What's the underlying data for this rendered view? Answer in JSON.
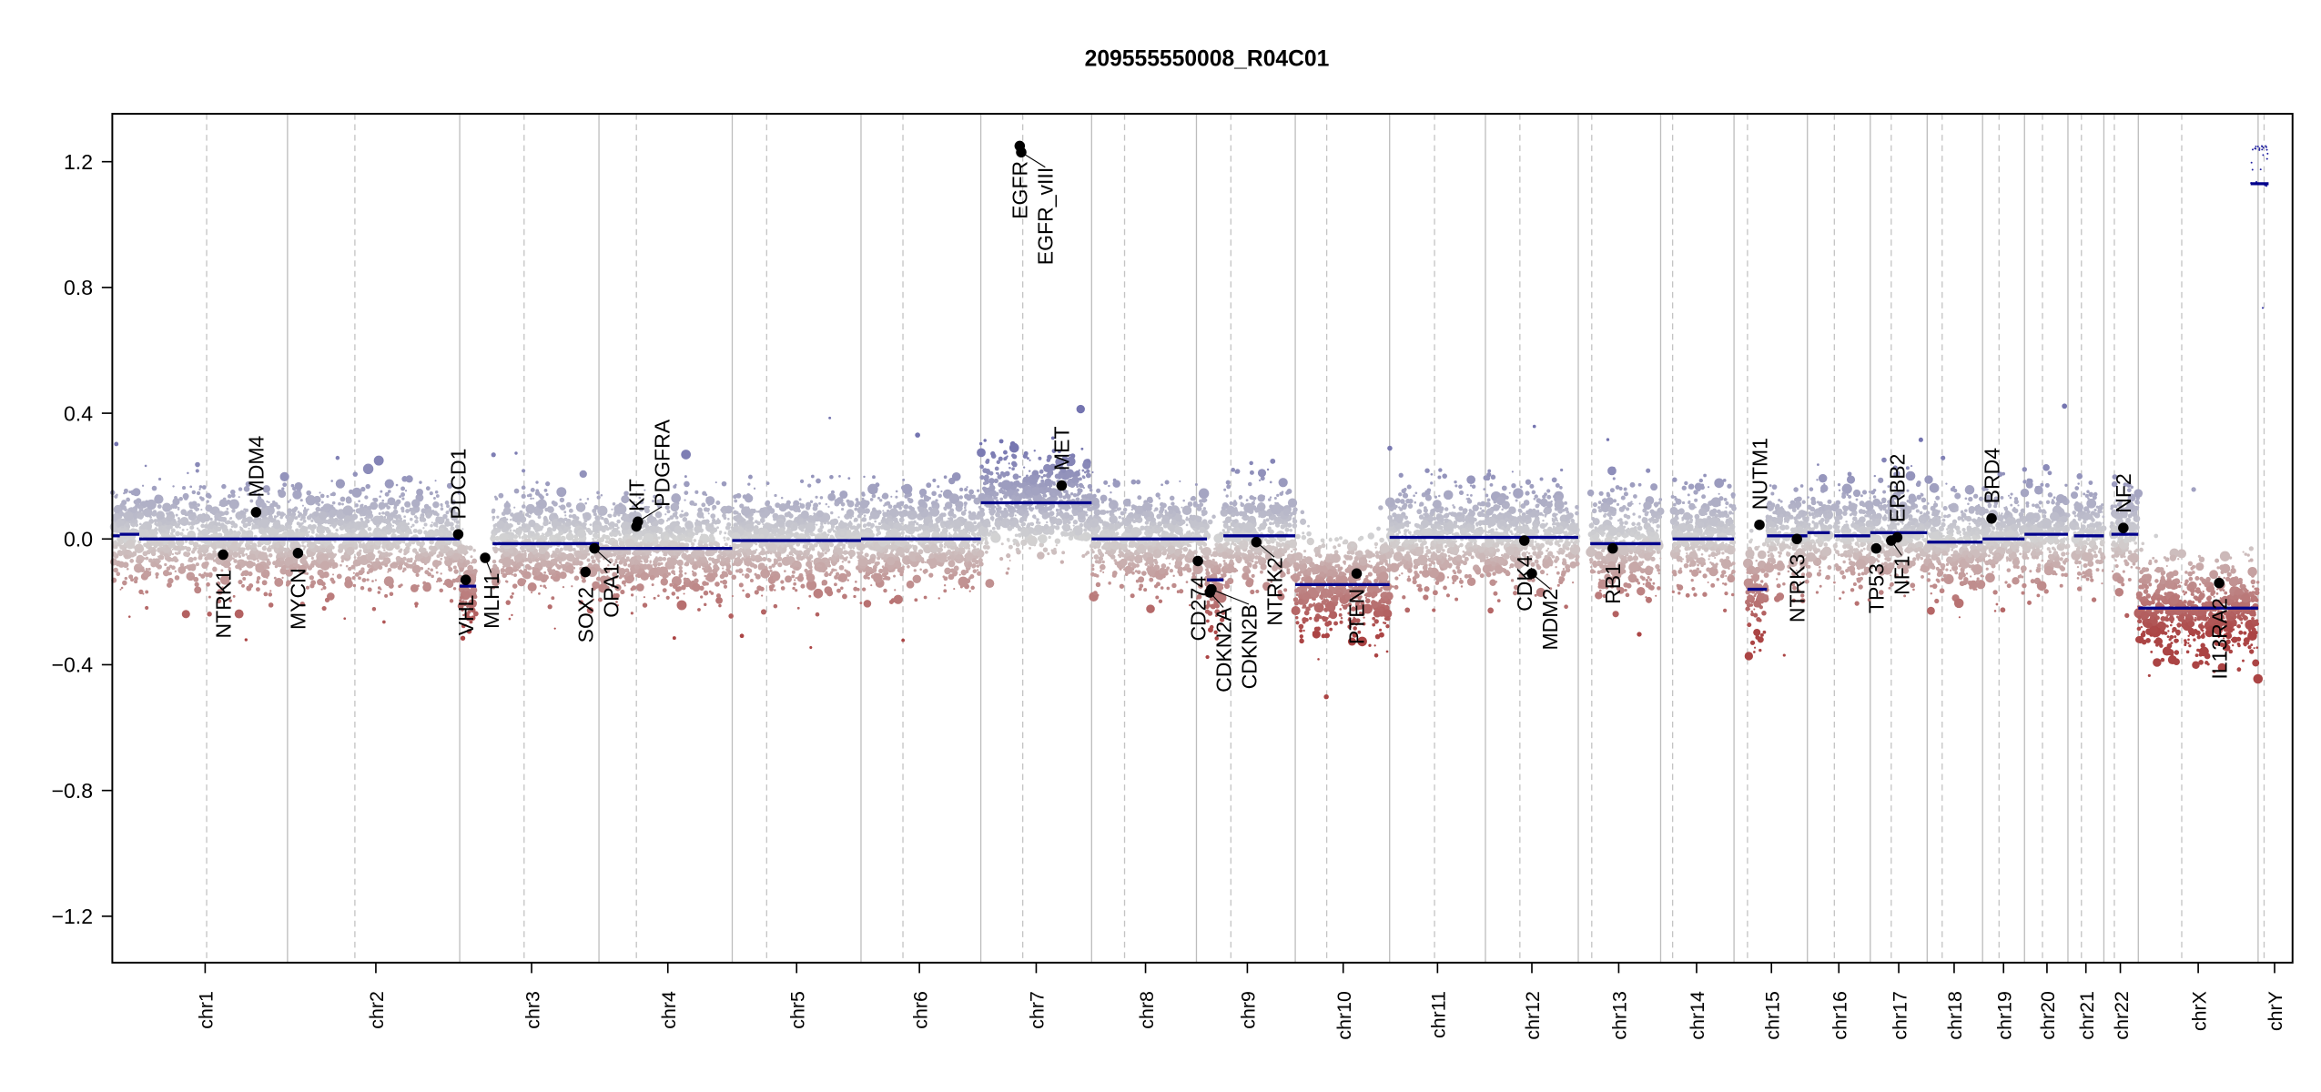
{
  "chart_data": {
    "type": "scatter",
    "title": "209555550008_R04C01",
    "xlabel": "",
    "ylabel": "",
    "ylim": [
      -1.35,
      1.35
    ],
    "yticks": [
      "1.2",
      "0.8",
      "0.4",
      "0.0",
      "-0.4",
      "-0.8",
      "-1.2"
    ],
    "ytick_values": [
      1.2,
      0.8,
      0.4,
      0.0,
      -0.4,
      -0.8,
      -1.2
    ],
    "grid": false,
    "categories": [
      "chr1",
      "chr2",
      "chr3",
      "chr4",
      "chr5",
      "chr6",
      "chr7",
      "chr8",
      "chr9",
      "chr10",
      "chr11",
      "chr12",
      "chr13",
      "chr14",
      "chr15",
      "chr16",
      "chr17",
      "chr18",
      "chr19",
      "chr20",
      "chr21",
      "chr22",
      "chrX",
      "chrY"
    ],
    "segments": [
      {
        "chrom": "chr1",
        "value": 0.01
      },
      {
        "chrom": "chr1",
        "value": 0.015
      },
      {
        "chrom": "chr1",
        "value": 0.0
      },
      {
        "chrom": "chr2",
        "value": 0.0
      },
      {
        "chrom": "chr3",
        "value": -0.15
      },
      {
        "chrom": "chr3",
        "value": -0.015
      },
      {
        "chrom": "chr4",
        "value": -0.03
      },
      {
        "chrom": "chr5",
        "value": -0.005
      },
      {
        "chrom": "chr6",
        "value": 0.0
      },
      {
        "chrom": "chr7",
        "value": 0.115
      },
      {
        "chrom": "chr8",
        "value": 0.0
      },
      {
        "chrom": "chr9",
        "value": 0.0
      },
      {
        "chrom": "chr9",
        "value": -0.13
      },
      {
        "chrom": "chr9",
        "value": 0.01
      },
      {
        "chrom": "chr10",
        "value": -0.145
      },
      {
        "chrom": "chr11",
        "value": 0.005
      },
      {
        "chrom": "chr12",
        "value": 0.005
      },
      {
        "chrom": "chr13",
        "value": -0.015
      },
      {
        "chrom": "chr14",
        "value": 0.0
      },
      {
        "chrom": "chr15",
        "value": -0.16
      },
      {
        "chrom": "chr15",
        "value": 0.01
      },
      {
        "chrom": "chr16",
        "value": 0.02
      },
      {
        "chrom": "chr16",
        "value": 0.01
      },
      {
        "chrom": "chr17",
        "value": 0.02
      },
      {
        "chrom": "chr18",
        "value": -0.01
      },
      {
        "chrom": "chr19",
        "value": 0.0
      },
      {
        "chrom": "chr20",
        "value": 0.015
      },
      {
        "chrom": "chr21",
        "value": 0.01
      },
      {
        "chrom": "chr22",
        "value": 0.015
      },
      {
        "chrom": "chrX",
        "value": -0.22
      },
      {
        "chrom": "chrY",
        "value": 1.13
      }
    ],
    "genes": [
      {
        "name": "NTRK1",
        "chrom": "chr1",
        "value": -0.05
      },
      {
        "name": "MDM4",
        "chrom": "chr1",
        "value": 0.085
      },
      {
        "name": "MYCN",
        "chrom": "chr2",
        "value": -0.045
      },
      {
        "name": "PDCD1",
        "chrom": "chr2",
        "value": 0.015
      },
      {
        "name": "VHL",
        "chrom": "chr3",
        "value": -0.13
      },
      {
        "name": "MLH1",
        "chrom": "chr3",
        "value": -0.06
      },
      {
        "name": "SOX2",
        "chrom": "chr3",
        "value": -0.105
      },
      {
        "name": "OPA1",
        "chrom": "chr3",
        "value": -0.03
      },
      {
        "name": "KIT",
        "chrom": "chr4",
        "value": 0.04
      },
      {
        "name": "PDGFRA",
        "chrom": "chr4",
        "value": 0.055
      },
      {
        "name": "EGFR",
        "chrom": "chr7",
        "value": 1.25
      },
      {
        "name": "EGFR_vIII",
        "chrom": "chr7",
        "value": 1.23
      },
      {
        "name": "MET",
        "chrom": "chr7",
        "value": 0.17
      },
      {
        "name": "CD274",
        "chrom": "chr9",
        "value": -0.07
      },
      {
        "name": "CDKN2A",
        "chrom": "chr9",
        "value": -0.17
      },
      {
        "name": "CDKN2B",
        "chrom": "chr9",
        "value": -0.16
      },
      {
        "name": "NTRK2",
        "chrom": "chr9",
        "value": -0.01
      },
      {
        "name": "PTEN",
        "chrom": "chr10",
        "value": -0.11
      },
      {
        "name": "CDK4",
        "chrom": "chr12",
        "value": -0.005
      },
      {
        "name": "MDM2",
        "chrom": "chr12",
        "value": -0.11
      },
      {
        "name": "RB1",
        "chrom": "chr13",
        "value": -0.03
      },
      {
        "name": "NUTM1",
        "chrom": "chr15",
        "value": 0.045
      },
      {
        "name": "NTRK3",
        "chrom": "chr15",
        "value": 0.0
      },
      {
        "name": "TP53",
        "chrom": "chr17",
        "value": -0.03
      },
      {
        "name": "NF1",
        "chrom": "chr17",
        "value": -0.005
      },
      {
        "name": "ERBB2",
        "chrom": "chr17",
        "value": 0.005
      },
      {
        "name": "BRD4",
        "chrom": "chr19",
        "value": 0.065
      },
      {
        "name": "NF2",
        "chrom": "chr22",
        "value": 0.035
      },
      {
        "name": "IL13RA2",
        "chrom": "chrX",
        "value": -0.14
      }
    ],
    "colors": {
      "gain": "#7474b0",
      "neutral": "#d3d3d3",
      "loss": "#ab4444",
      "segment": "#00008b",
      "gene": "#000000"
    }
  }
}
